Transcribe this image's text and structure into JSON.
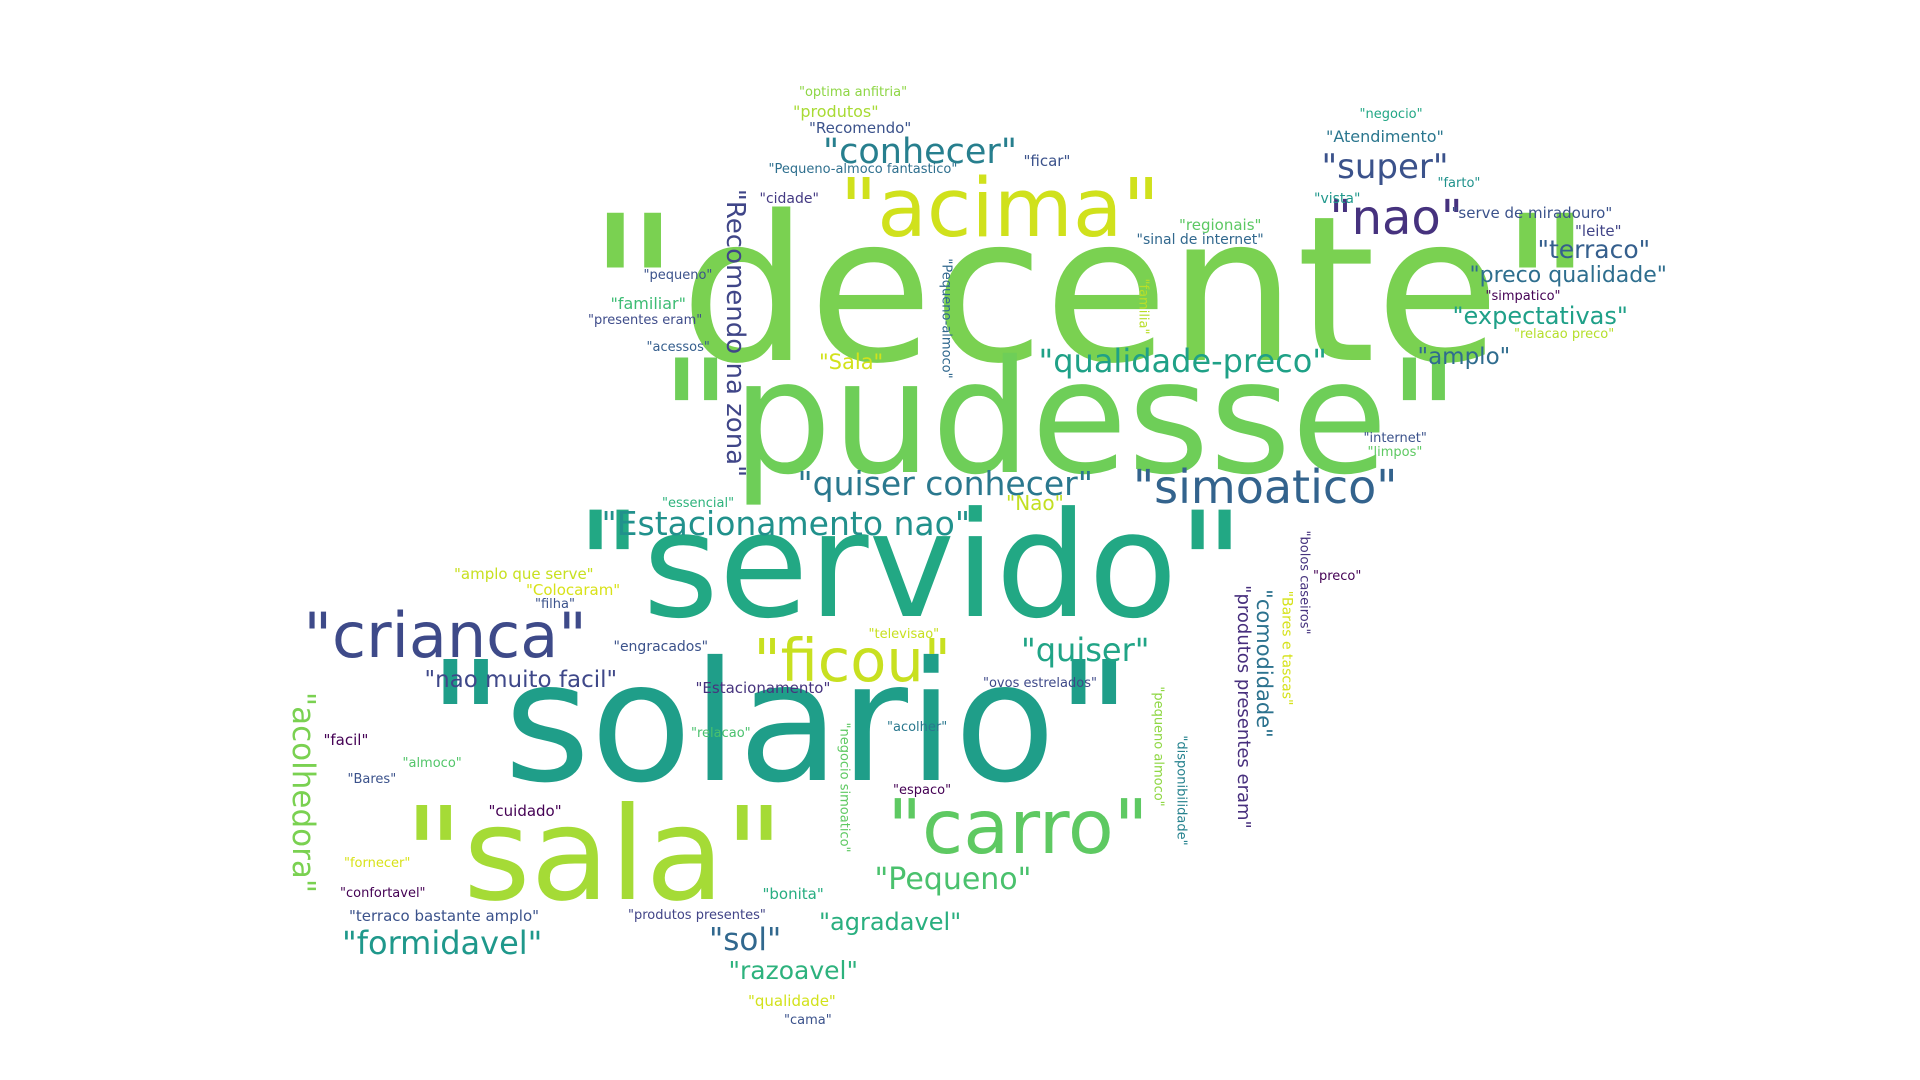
{
  "words": [
    {
      "text": "\"decente\"",
      "color": "#7ad151"
    },
    {
      "text": "\"pudesse\"",
      "color": "#6ece58"
    },
    {
      "text": "\"servido\"",
      "color": "#22a884"
    },
    {
      "text": "\"solario\"",
      "color": "#1f9e89"
    },
    {
      "text": "\"sala\"",
      "color": "#a5db36"
    },
    {
      "text": "\"acima\"",
      "color": "#d0e11c"
    },
    {
      "text": "\"crianca\"",
      "color": "#3e4a89"
    },
    {
      "text": "\"carro\"",
      "color": "#5ec962"
    },
    {
      "text": "\"ficou\"",
      "color": "#c8e020"
    },
    {
      "text": "\"nao\"",
      "color": "#46327e"
    },
    {
      "text": "\"simoatico\"",
      "color": "#33638d"
    },
    {
      "text": "\"conhecer\"",
      "color": "#277f8e"
    },
    {
      "text": "\"super\"",
      "color": "#3b528b"
    },
    {
      "text": "\"quiser conhecer\"",
      "color": "#2a788e"
    },
    {
      "text": "\"Estacionamento nao\"",
      "color": "#21918c"
    },
    {
      "text": "\"qualidade-preco\"",
      "color": "#1fa187"
    },
    {
      "text": "\"quiser\"",
      "color": "#20a486"
    },
    {
      "text": "\"Recomendo na zona\"",
      "color": "#404688"
    },
    {
      "text": "\"acolhedora\"",
      "color": "#7ad151"
    },
    {
      "text": "\"formidavel\"",
      "color": "#1f988b"
    },
    {
      "text": "\"Pequeno\"",
      "color": "#4ac16d"
    },
    {
      "text": "\"sol\"",
      "color": "#31688e"
    },
    {
      "text": "\"razoavel\"",
      "color": "#2db27d"
    },
    {
      "text": "\"agradavel\"",
      "color": "#29af7f"
    },
    {
      "text": "\"terraco\"",
      "color": "#355f8d"
    },
    {
      "text": "\"expectativas\"",
      "color": "#1fa088"
    },
    {
      "text": "\"preco qualidade\"",
      "color": "#2e6e8e"
    },
    {
      "text": "\"amplo\"",
      "color": "#2f6c8e"
    },
    {
      "text": "\"nao muito facil\"",
      "color": "#3f4889"
    },
    {
      "text": "\"Sala\"",
      "color": "#d2e21b"
    },
    {
      "text": "\"comodidade\"",
      "color": "#2c728e"
    },
    {
      "text": "\"produtos presentes eram\"",
      "color": "#472f7d"
    },
    {
      "text": "\"Nao\"",
      "color": "#c2df23"
    },
    {
      "text": "\"Atendimento\"",
      "color": "#2a768e"
    },
    {
      "text": "\"Recomendo\"",
      "color": "#3b528b"
    },
    {
      "text": "\"produtos\"",
      "color": "#a8db34"
    },
    {
      "text": "\"optima anfitria\"",
      "color": "#8ed645"
    },
    {
      "text": "\"Pequeno-almoco fantastico\"",
      "color": "#2e6f8e"
    },
    {
      "text": "\"ficar\"",
      "color": "#3b528b"
    },
    {
      "text": "\"cidade\"",
      "color": "#443a83"
    },
    {
      "text": "\"regionais\"",
      "color": "#5cc863"
    },
    {
      "text": "\"sinal de internet\"",
      "color": "#31688e"
    },
    {
      "text": "\"vista\"",
      "color": "#1f978b"
    },
    {
      "text": "\"negocio\"",
      "color": "#22a785"
    },
    {
      "text": "\"farto\"",
      "color": "#20928c"
    },
    {
      "text": "\"serve de miradouro\"",
      "color": "#3b528b"
    },
    {
      "text": "\"leite\"",
      "color": "#414487"
    },
    {
      "text": "\"simpatico\"",
      "color": "#440154"
    },
    {
      "text": "\"relacao preco\"",
      "color": "#b5de2b"
    },
    {
      "text": "\"pequeno\"",
      "color": "#3b528b"
    },
    {
      "text": "\"familiar\"",
      "color": "#3dbc74"
    },
    {
      "text": "\"presentes eram\"",
      "color": "#3e4c8a"
    },
    {
      "text": "\"acessos\"",
      "color": "#355e8d"
    },
    {
      "text": "\"Pequeno-almoco\"",
      "color": "#31688e"
    },
    {
      "text": "\"familia\"",
      "color": "#b8de29"
    },
    {
      "text": "\"internet\"",
      "color": "#3b528b"
    },
    {
      "text": "\"limpos\"",
      "color": "#5ec962"
    },
    {
      "text": "\"essencial\"",
      "color": "#2eb37c"
    },
    {
      "text": "\"amplo que serve\"",
      "color": "#c8e020"
    },
    {
      "text": "\"Colocaram\"",
      "color": "#d8e219"
    },
    {
      "text": "\"filha\"",
      "color": "#3b528b"
    },
    {
      "text": "\"preco\"",
      "color": "#440154"
    },
    {
      "text": "\"bolos caseiros\"",
      "color": "#46337e"
    },
    {
      "text": "\"Bares e tascas\"",
      "color": "#d5e21a"
    },
    {
      "text": "\"engracados\"",
      "color": "#3b528b"
    },
    {
      "text": "\"televisao\"",
      "color": "#c8e020"
    },
    {
      "text": "\"Estacionamento\"",
      "color": "#46337e"
    },
    {
      "text": "\"ovos estrelados\"",
      "color": "#3e4989"
    },
    {
      "text": "\"pequeno almoco\"",
      "color": "#8fd744"
    },
    {
      "text": "\"negocio simoatico\"",
      "color": "#5ec962"
    },
    {
      "text": "\"disponibilidade\"",
      "color": "#26828e"
    },
    {
      "text": "\"facil\"",
      "color": "#440154"
    },
    {
      "text": "\"almoco\"",
      "color": "#52c569"
    },
    {
      "text": "\"Bares\"",
      "color": "#3b528b"
    },
    {
      "text": "\"relacao\"",
      "color": "#4ac16d"
    },
    {
      "text": "\"acolher\"",
      "color": "#2a788e"
    },
    {
      "text": "\"espaco\"",
      "color": "#440154"
    },
    {
      "text": "\"cuidado\"",
      "color": "#440154"
    },
    {
      "text": "\"fornecer\"",
      "color": "#d8e219"
    },
    {
      "text": "\"bonita\"",
      "color": "#27ad81"
    },
    {
      "text": "\"confortavel\"",
      "color": "#440154"
    },
    {
      "text": "\"terraco bastante amplo\"",
      "color": "#3b528b"
    },
    {
      "text": "\"produtos presentes\"",
      "color": "#414487"
    },
    {
      "text": "\"qualidade\"",
      "color": "#d2e21b"
    },
    {
      "text": "\"cama\"",
      "color": "#3b528b"
    }
  ]
}
